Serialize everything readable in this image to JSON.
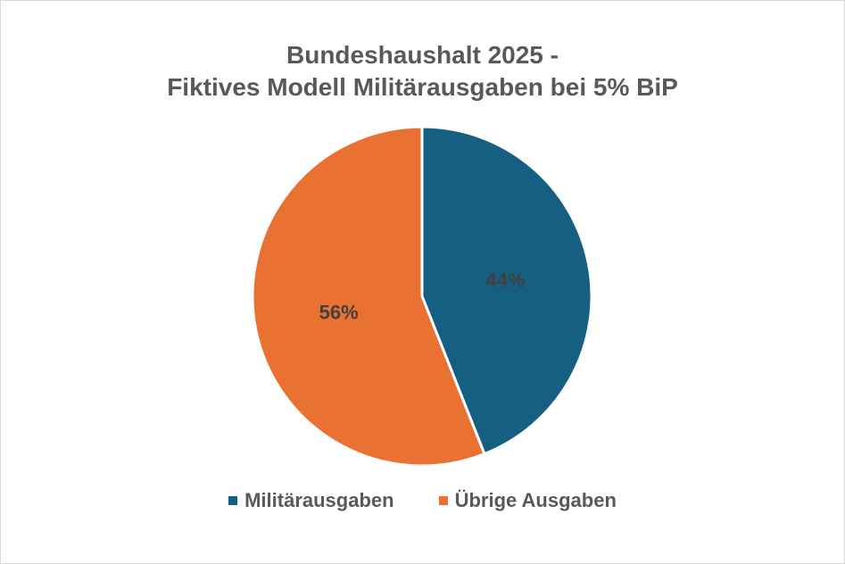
{
  "chart_data": {
    "type": "pie",
    "title_lines": [
      "Bundeshaushalt 2025 -",
      "Fiktives Modell Militärausgaben bei 5% BiP"
    ],
    "categories": [
      "Militärausgaben",
      "Übrige Ausgaben"
    ],
    "values": [
      44,
      56
    ],
    "labels": [
      "44%",
      "56%"
    ],
    "colors": [
      "#156082",
      "#E97132"
    ],
    "legend": "bottom"
  }
}
